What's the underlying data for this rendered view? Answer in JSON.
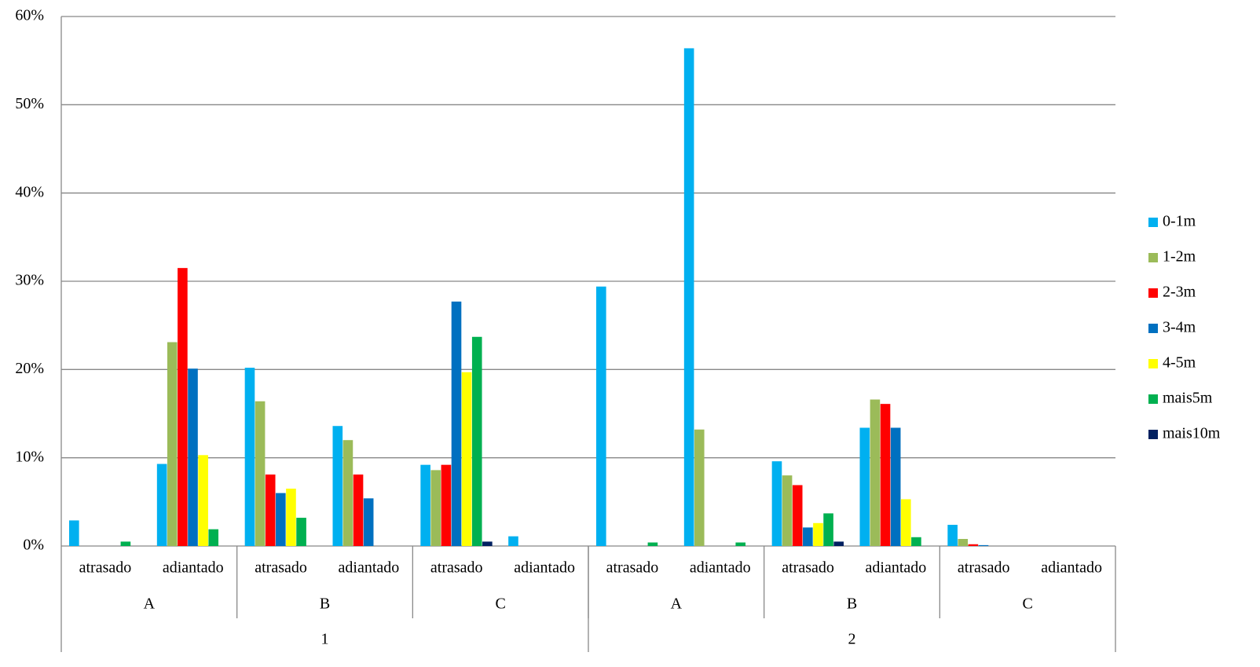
{
  "chart_data": {
    "type": "bar",
    "categories": [
      "atrasado",
      "adiantado",
      "atrasado",
      "adiantado",
      "atrasado",
      "adiantado",
      "atrasado",
      "adiantado",
      "atrasado",
      "adiantado",
      "atrasado",
      "adiantado"
    ],
    "groups": [
      "A",
      "B",
      "C",
      "A",
      "B",
      "C"
    ],
    "supergroups": [
      "1",
      "2"
    ],
    "series": [
      {
        "name": "0-1m",
        "color": "#00b0f0",
        "values": [
          2.9,
          9.3,
          20.2,
          13.6,
          9.2,
          1.1,
          29.4,
          56.4,
          9.6,
          13.4,
          2.4,
          0
        ]
      },
      {
        "name": "1-2m",
        "color": "#9bbb59",
        "values": [
          0,
          23.1,
          16.4,
          12.0,
          8.6,
          0,
          0,
          13.2,
          8.0,
          16.6,
          0.8,
          0
        ]
      },
      {
        "name": "2-3m",
        "color": "#ff0000",
        "values": [
          0,
          31.5,
          8.1,
          8.1,
          9.2,
          0,
          0,
          0,
          6.9,
          16.1,
          0.2,
          0
        ]
      },
      {
        "name": "3-4m",
        "color": "#0070c0",
        "values": [
          0,
          20.1,
          6.0,
          5.4,
          27.7,
          0,
          0,
          0,
          2.1,
          13.4,
          0.1,
          0
        ]
      },
      {
        "name": "4-5m",
        "color": "#ffff00",
        "values": [
          0,
          10.3,
          6.5,
          0,
          19.7,
          0,
          0,
          0,
          2.6,
          5.3,
          0,
          0
        ]
      },
      {
        "name": "mais5m",
        "color": "#00b050",
        "values": [
          0.5,
          1.9,
          3.2,
          0,
          23.7,
          0,
          0.4,
          0.4,
          3.7,
          1.0,
          0,
          0
        ]
      },
      {
        "name": "mais10m",
        "color": "#002060",
        "values": [
          0,
          0,
          0,
          0,
          0.5,
          0,
          0,
          0,
          0.5,
          0,
          0,
          0
        ]
      }
    ],
    "ylim": [
      0,
      60
    ],
    "yticks": [
      {
        "value": 0,
        "label": "0%"
      },
      {
        "value": 10,
        "label": "10%"
      },
      {
        "value": 20,
        "label": "20%"
      },
      {
        "value": 30,
        "label": "30%"
      },
      {
        "value": 40,
        "label": "40%"
      },
      {
        "value": 50,
        "label": "50%"
      },
      {
        "value": 60,
        "label": "60%"
      }
    ],
    "grid": true,
    "legend": "right"
  }
}
